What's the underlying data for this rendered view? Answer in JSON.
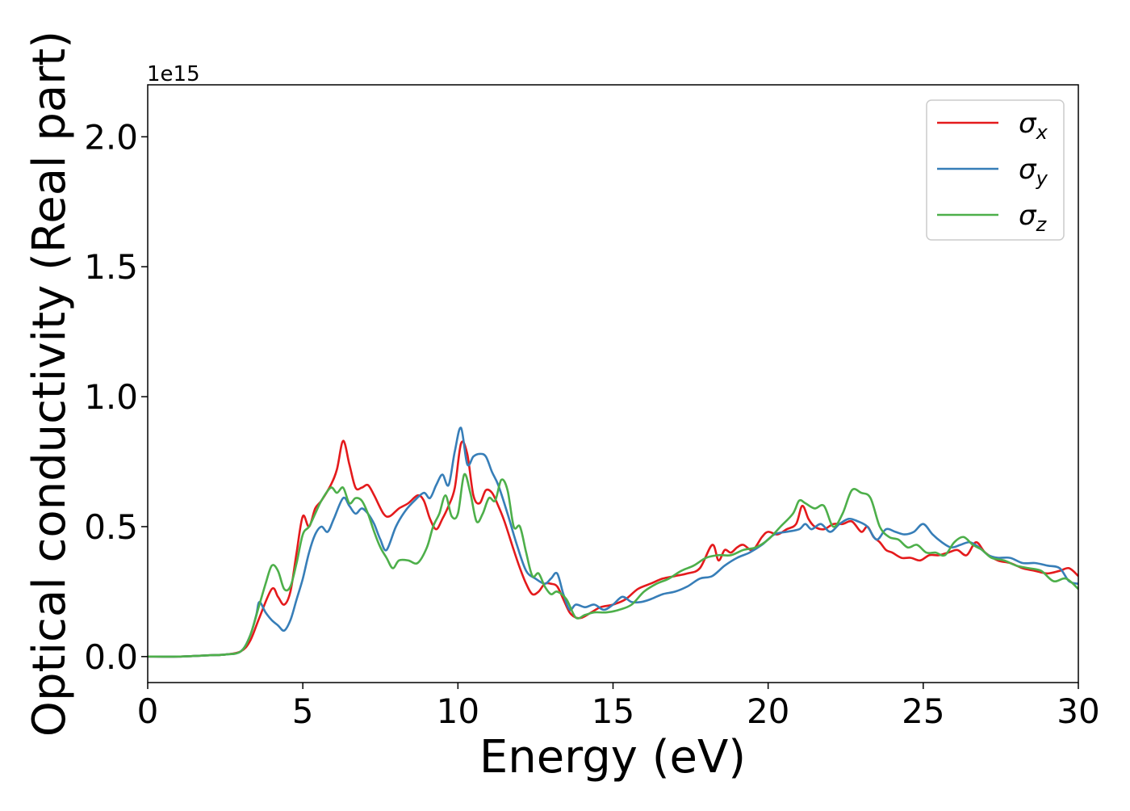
{
  "chart_data": {
    "type": "line",
    "title": "",
    "xlabel": "Energy (eV)",
    "ylabel": "Optical conductivity (Real part)",
    "offset_label": "1e15",
    "xlim": [
      0,
      30
    ],
    "ylim": [
      -0.1,
      2.2
    ],
    "xticks": [
      0,
      5,
      10,
      15,
      20,
      25,
      30
    ],
    "yticks": [
      0.0,
      0.5,
      1.0,
      1.5,
      2.0
    ],
    "xtick_labels": [
      "0",
      "5",
      "10",
      "15",
      "20",
      "25",
      "30"
    ],
    "ytick_labels": [
      "0.0",
      "0.5",
      "1.0",
      "1.5",
      "2.0"
    ],
    "grid": false,
    "legend_position": "top-right",
    "series": [
      {
        "name": "σx",
        "symbol": "σ",
        "subscript": "x",
        "color": "#e41a1c",
        "x": [
          0,
          1,
          2,
          2.5,
          3,
          3.3,
          3.6,
          4,
          4.2,
          4.4,
          4.6,
          4.8,
          5,
          5.2,
          5.4,
          5.6,
          5.9,
          6.1,
          6.3,
          6.5,
          6.7,
          6.9,
          7.1,
          7.3,
          7.6,
          7.8,
          8.1,
          8.4,
          8.7,
          8.9,
          9.1,
          9.3,
          9.5,
          9.7,
          9.9,
          10.1,
          10.3,
          10.5,
          10.7,
          10.9,
          11.1,
          11.3,
          11.5,
          11.8,
          12,
          12.2,
          12.4,
          12.6,
          12.8,
          13,
          13.2,
          13.4,
          13.6,
          13.8,
          14,
          14.3,
          14.6,
          15,
          15.4,
          15.8,
          16.2,
          16.6,
          17,
          17.4,
          17.8,
          18.2,
          18.4,
          18.6,
          18.8,
          19,
          19.2,
          19.5,
          19.8,
          20,
          20.3,
          20.6,
          20.9,
          21.1,
          21.3,
          21.5,
          21.8,
          22.1,
          22.4,
          22.7,
          23,
          23.2,
          23.4,
          23.6,
          23.8,
          24,
          24.3,
          24.6,
          24.9,
          25.2,
          25.5,
          25.8,
          26.1,
          26.4,
          26.7,
          27,
          27.4,
          27.8,
          28.2,
          28.6,
          29,
          29.4,
          29.7,
          30
        ],
        "y": [
          0,
          0,
          0.005,
          0.008,
          0.02,
          0.06,
          0.15,
          0.26,
          0.23,
          0.2,
          0.25,
          0.4,
          0.54,
          0.5,
          0.57,
          0.6,
          0.66,
          0.72,
          0.83,
          0.74,
          0.65,
          0.65,
          0.66,
          0.62,
          0.55,
          0.54,
          0.57,
          0.59,
          0.62,
          0.6,
          0.53,
          0.49,
          0.53,
          0.58,
          0.65,
          0.82,
          0.78,
          0.62,
          0.59,
          0.64,
          0.63,
          0.58,
          0.52,
          0.41,
          0.34,
          0.28,
          0.24,
          0.25,
          0.28,
          0.28,
          0.27,
          0.22,
          0.17,
          0.15,
          0.15,
          0.17,
          0.19,
          0.2,
          0.22,
          0.26,
          0.28,
          0.3,
          0.31,
          0.32,
          0.34,
          0.43,
          0.37,
          0.41,
          0.4,
          0.42,
          0.43,
          0.41,
          0.46,
          0.48,
          0.47,
          0.49,
          0.51,
          0.58,
          0.53,
          0.5,
          0.49,
          0.51,
          0.51,
          0.52,
          0.48,
          0.5,
          0.46,
          0.44,
          0.41,
          0.4,
          0.38,
          0.38,
          0.37,
          0.39,
          0.39,
          0.4,
          0.41,
          0.39,
          0.44,
          0.4,
          0.37,
          0.36,
          0.34,
          0.33,
          0.32,
          0.33,
          0.34,
          0.31
        ]
      },
      {
        "name": "σy",
        "symbol": "σ",
        "subscript": "y",
        "color": "#377eb8",
        "x": [
          0,
          1,
          2,
          2.5,
          3,
          3.3,
          3.5,
          3.6,
          3.8,
          4,
          4.2,
          4.4,
          4.6,
          4.8,
          5,
          5.2,
          5.4,
          5.6,
          5.8,
          6,
          6.3,
          6.5,
          6.7,
          6.9,
          7.1,
          7.3,
          7.5,
          7.7,
          8,
          8.3,
          8.6,
          8.9,
          9.1,
          9.3,
          9.5,
          9.7,
          9.9,
          10.1,
          10.3,
          10.5,
          10.7,
          10.9,
          11.1,
          11.3,
          11.6,
          11.9,
          12.2,
          12.5,
          12.8,
          13,
          13.2,
          13.4,
          13.6,
          13.8,
          14.1,
          14.4,
          14.7,
          15,
          15.3,
          15.6,
          15.9,
          16.2,
          16.6,
          17,
          17.4,
          17.8,
          18.2,
          18.6,
          19,
          19.4,
          19.8,
          20.2,
          20.6,
          21,
          21.2,
          21.4,
          21.7,
          22,
          22.3,
          22.6,
          22.9,
          23.2,
          23.5,
          23.8,
          24.1,
          24.4,
          24.7,
          25,
          25.3,
          25.6,
          25.9,
          26.2,
          26.5,
          26.8,
          27.1,
          27.4,
          27.8,
          28.2,
          28.6,
          29,
          29.4,
          29.7,
          30
        ],
        "y": [
          0,
          0,
          0.005,
          0.008,
          0.02,
          0.08,
          0.16,
          0.21,
          0.17,
          0.14,
          0.12,
          0.1,
          0.14,
          0.22,
          0.3,
          0.4,
          0.47,
          0.5,
          0.48,
          0.53,
          0.61,
          0.58,
          0.55,
          0.57,
          0.55,
          0.51,
          0.45,
          0.41,
          0.5,
          0.56,
          0.6,
          0.63,
          0.61,
          0.66,
          0.7,
          0.66,
          0.79,
          0.88,
          0.74,
          0.77,
          0.78,
          0.77,
          0.71,
          0.66,
          0.55,
          0.43,
          0.33,
          0.3,
          0.28,
          0.3,
          0.32,
          0.24,
          0.18,
          0.2,
          0.19,
          0.2,
          0.18,
          0.2,
          0.23,
          0.21,
          0.21,
          0.22,
          0.24,
          0.25,
          0.27,
          0.3,
          0.31,
          0.35,
          0.38,
          0.4,
          0.43,
          0.47,
          0.48,
          0.49,
          0.51,
          0.49,
          0.51,
          0.48,
          0.51,
          0.53,
          0.52,
          0.5,
          0.45,
          0.49,
          0.48,
          0.47,
          0.48,
          0.51,
          0.47,
          0.44,
          0.42,
          0.43,
          0.44,
          0.42,
          0.39,
          0.38,
          0.38,
          0.36,
          0.36,
          0.35,
          0.34,
          0.29,
          0.28
        ]
      },
      {
        "name": "σz",
        "symbol": "σ",
        "subscript": "z",
        "color": "#4daf4a",
        "x": [
          0,
          1,
          2,
          2.5,
          3,
          3.3,
          3.6,
          3.8,
          4,
          4.2,
          4.4,
          4.6,
          4.8,
          5,
          5.2,
          5.4,
          5.6,
          5.9,
          6.1,
          6.3,
          6.5,
          6.7,
          6.9,
          7.1,
          7.3,
          7.5,
          7.7,
          7.9,
          8.1,
          8.4,
          8.7,
          9,
          9.2,
          9.4,
          9.6,
          9.8,
          10,
          10.2,
          10.4,
          10.6,
          10.8,
          11,
          11.2,
          11.4,
          11.6,
          11.8,
          12,
          12.2,
          12.4,
          12.6,
          12.8,
          13,
          13.2,
          13.5,
          13.8,
          14.1,
          14.4,
          14.8,
          15.2,
          15.6,
          16,
          16.4,
          16.8,
          17.2,
          17.6,
          18,
          18.4,
          18.8,
          19.2,
          19.6,
          20,
          20.4,
          20.8,
          21,
          21.2,
          21.5,
          21.8,
          22.1,
          22.4,
          22.7,
          23,
          23.3,
          23.6,
          23.9,
          24.2,
          24.5,
          24.8,
          25.1,
          25.4,
          25.7,
          26,
          26.3,
          26.6,
          26.9,
          27.2,
          27.6,
          28,
          28.4,
          28.8,
          29.2,
          29.6,
          30
        ],
        "y": [
          0,
          0,
          0.005,
          0.008,
          0.02,
          0.08,
          0.2,
          0.28,
          0.35,
          0.33,
          0.26,
          0.27,
          0.36,
          0.47,
          0.5,
          0.55,
          0.6,
          0.65,
          0.63,
          0.65,
          0.59,
          0.61,
          0.6,
          0.55,
          0.48,
          0.42,
          0.38,
          0.34,
          0.37,
          0.37,
          0.36,
          0.42,
          0.5,
          0.55,
          0.62,
          0.54,
          0.55,
          0.7,
          0.63,
          0.52,
          0.55,
          0.61,
          0.6,
          0.68,
          0.64,
          0.5,
          0.5,
          0.4,
          0.31,
          0.32,
          0.27,
          0.24,
          0.25,
          0.22,
          0.15,
          0.16,
          0.17,
          0.17,
          0.18,
          0.2,
          0.25,
          0.28,
          0.3,
          0.33,
          0.35,
          0.38,
          0.39,
          0.39,
          0.41,
          0.42,
          0.45,
          0.5,
          0.55,
          0.6,
          0.59,
          0.57,
          0.58,
          0.5,
          0.55,
          0.64,
          0.63,
          0.61,
          0.5,
          0.46,
          0.45,
          0.42,
          0.43,
          0.4,
          0.4,
          0.39,
          0.44,
          0.46,
          0.43,
          0.41,
          0.38,
          0.37,
          0.35,
          0.34,
          0.33,
          0.29,
          0.3,
          0.26
        ]
      }
    ]
  }
}
